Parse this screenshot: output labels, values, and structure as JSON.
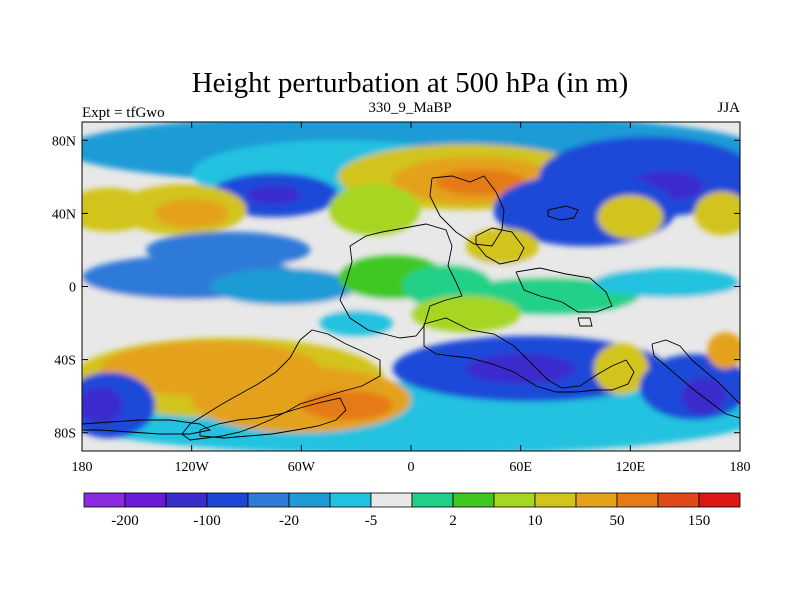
{
  "chart_data": {
    "type": "heatmap",
    "title": "Height perturbation at 500 hPa (in m)",
    "left_string": "Expt = tfGwo",
    "center_string": "330_9_MaBP",
    "right_string": "JJA",
    "x_range": [
      -180,
      180
    ],
    "y_range": [
      -90,
      90
    ],
    "x_ticks": [
      {
        "value": -180,
        "label": "180"
      },
      {
        "value": -120,
        "label": "120W"
      },
      {
        "value": -60,
        "label": "60W"
      },
      {
        "value": 0,
        "label": "0"
      },
      {
        "value": 60,
        "label": "60E"
      },
      {
        "value": 120,
        "label": "120E"
      },
      {
        "value": 180,
        "label": "180"
      }
    ],
    "y_ticks": [
      {
        "value": 80,
        "label": "80N"
      },
      {
        "value": 40,
        "label": "40N"
      },
      {
        "value": 0,
        "label": "0"
      },
      {
        "value": -40,
        "label": "40S"
      },
      {
        "value": -80,
        "label": "80S"
      }
    ],
    "colorbar": {
      "colors": [
        "#8a2be2",
        "#6a1bd8",
        "#3b2ccc",
        "#1c48d8",
        "#2f7ad8",
        "#1e9bd6",
        "#20c2e0",
        "#e8e8e8",
        "#20d088",
        "#40c820",
        "#a6d620",
        "#d2c41a",
        "#e4a21a",
        "#e67a18",
        "#e04a18",
        "#de1616"
      ],
      "labels": [
        {
          "boundary": 1,
          "label": "-200"
        },
        {
          "boundary": 3,
          "label": "-100"
        },
        {
          "boundary": 5,
          "label": "-20"
        },
        {
          "boundary": 7,
          "label": "-5"
        },
        {
          "boundary": 9,
          "label": "2"
        },
        {
          "boundary": 11,
          "label": "10"
        },
        {
          "boundary": 13,
          "label": "50"
        },
        {
          "boundary": 15,
          "label": "150"
        }
      ]
    },
    "blobs": [
      {
        "lon": 0,
        "lat": 0,
        "rx": 190,
        "ry": 14,
        "color": "#e8e8e8"
      },
      {
        "lon": -120,
        "lat": 5,
        "rx": 60,
        "ry": 12,
        "color": "#2f7ad8"
      },
      {
        "lon": -70,
        "lat": 0,
        "rx": 40,
        "ry": 10,
        "color": "#1e9bd6"
      },
      {
        "lon": -10,
        "lat": 5,
        "rx": 30,
        "ry": 12,
        "color": "#40c820"
      },
      {
        "lon": 20,
        "lat": 0,
        "rx": 25,
        "ry": 12,
        "color": "#20d088"
      },
      {
        "lon": 75,
        "lat": -5,
        "rx": 50,
        "ry": 10,
        "color": "#20d088"
      },
      {
        "lon": 140,
        "lat": 2,
        "rx": 40,
        "ry": 8,
        "color": "#20c2e0"
      },
      {
        "lon": 0,
        "lat": 75,
        "rx": 190,
        "ry": 20,
        "color": "#1e9bd6"
      },
      {
        "lon": -40,
        "lat": 62,
        "rx": 80,
        "ry": 18,
        "color": "#20c2e0"
      },
      {
        "lon": 30,
        "lat": 60,
        "rx": 70,
        "ry": 18,
        "color": "#d2c41a"
      },
      {
        "lon": 35,
        "lat": 58,
        "rx": 45,
        "ry": 13,
        "color": "#e4a21a"
      },
      {
        "lon": 38,
        "lat": 57,
        "rx": 25,
        "ry": 7,
        "color": "#e67a18"
      },
      {
        "lon": -75,
        "lat": 50,
        "rx": 35,
        "ry": 12,
        "color": "#1c48d8"
      },
      {
        "lon": -75,
        "lat": 50,
        "rx": 15,
        "ry": 5,
        "color": "#3b2ccc"
      },
      {
        "lon": 130,
        "lat": 60,
        "rx": 60,
        "ry": 22,
        "color": "#1c48d8"
      },
      {
        "lon": 140,
        "lat": 55,
        "rx": 20,
        "ry": 8,
        "color": "#3b2ccc"
      },
      {
        "lon": -165,
        "lat": 42,
        "rx": 25,
        "ry": 12,
        "color": "#d2c41a"
      },
      {
        "lon": -125,
        "lat": 42,
        "rx": 35,
        "ry": 14,
        "color": "#d2c41a"
      },
      {
        "lon": -120,
        "lat": 40,
        "rx": 20,
        "ry": 8,
        "color": "#e4a21a"
      },
      {
        "lon": -20,
        "lat": 42,
        "rx": 25,
        "ry": 14,
        "color": "#a6d620"
      },
      {
        "lon": 95,
        "lat": 42,
        "rx": 50,
        "ry": 20,
        "color": "#1c48d8"
      },
      {
        "lon": 120,
        "lat": 38,
        "rx": 18,
        "ry": 12,
        "color": "#d2c41a"
      },
      {
        "lon": 170,
        "lat": 40,
        "rx": 15,
        "ry": 12,
        "color": "#d2c41a"
      },
      {
        "lon": -100,
        "lat": 20,
        "rx": 45,
        "ry": 10,
        "color": "#2f7ad8"
      },
      {
        "lon": 50,
        "lat": 22,
        "rx": 20,
        "ry": 10,
        "color": "#d2c41a"
      },
      {
        "lon": 0,
        "lat": -72,
        "rx": 190,
        "ry": 20,
        "color": "#20c2e0"
      },
      {
        "lon": -100,
        "lat": -50,
        "rx": 85,
        "ry": 22,
        "color": "#d2c41a"
      },
      {
        "lon": -110,
        "lat": -45,
        "rx": 60,
        "ry": 15,
        "color": "#e4a21a"
      },
      {
        "lon": -60,
        "lat": -62,
        "rx": 60,
        "ry": 18,
        "color": "#e4a21a"
      },
      {
        "lon": -35,
        "lat": -65,
        "rx": 25,
        "ry": 8,
        "color": "#e67a18"
      },
      {
        "lon": -165,
        "lat": -65,
        "rx": 25,
        "ry": 18,
        "color": "#1c48d8"
      },
      {
        "lon": -170,
        "lat": -65,
        "rx": 12,
        "ry": 10,
        "color": "#3b2ccc"
      },
      {
        "lon": 65,
        "lat": -45,
        "rx": 75,
        "ry": 18,
        "color": "#1c48d8"
      },
      {
        "lon": 60,
        "lat": -45,
        "rx": 30,
        "ry": 8,
        "color": "#3b2ccc"
      },
      {
        "lon": 115,
        "lat": -45,
        "rx": 15,
        "ry": 14,
        "color": "#d2c41a"
      },
      {
        "lon": 155,
        "lat": -55,
        "rx": 30,
        "ry": 18,
        "color": "#1c48d8"
      },
      {
        "lon": 160,
        "lat": -60,
        "rx": 12,
        "ry": 10,
        "color": "#3b2ccc"
      },
      {
        "lon": 172,
        "lat": -35,
        "rx": 10,
        "ry": 10,
        "color": "#e4a21a"
      },
      {
        "lon": 30,
        "lat": -15,
        "rx": 30,
        "ry": 10,
        "color": "#a6d620"
      },
      {
        "lon": -30,
        "lat": -20,
        "rx": 20,
        "ry": 7,
        "color": "#20c2e0"
      }
    ]
  }
}
